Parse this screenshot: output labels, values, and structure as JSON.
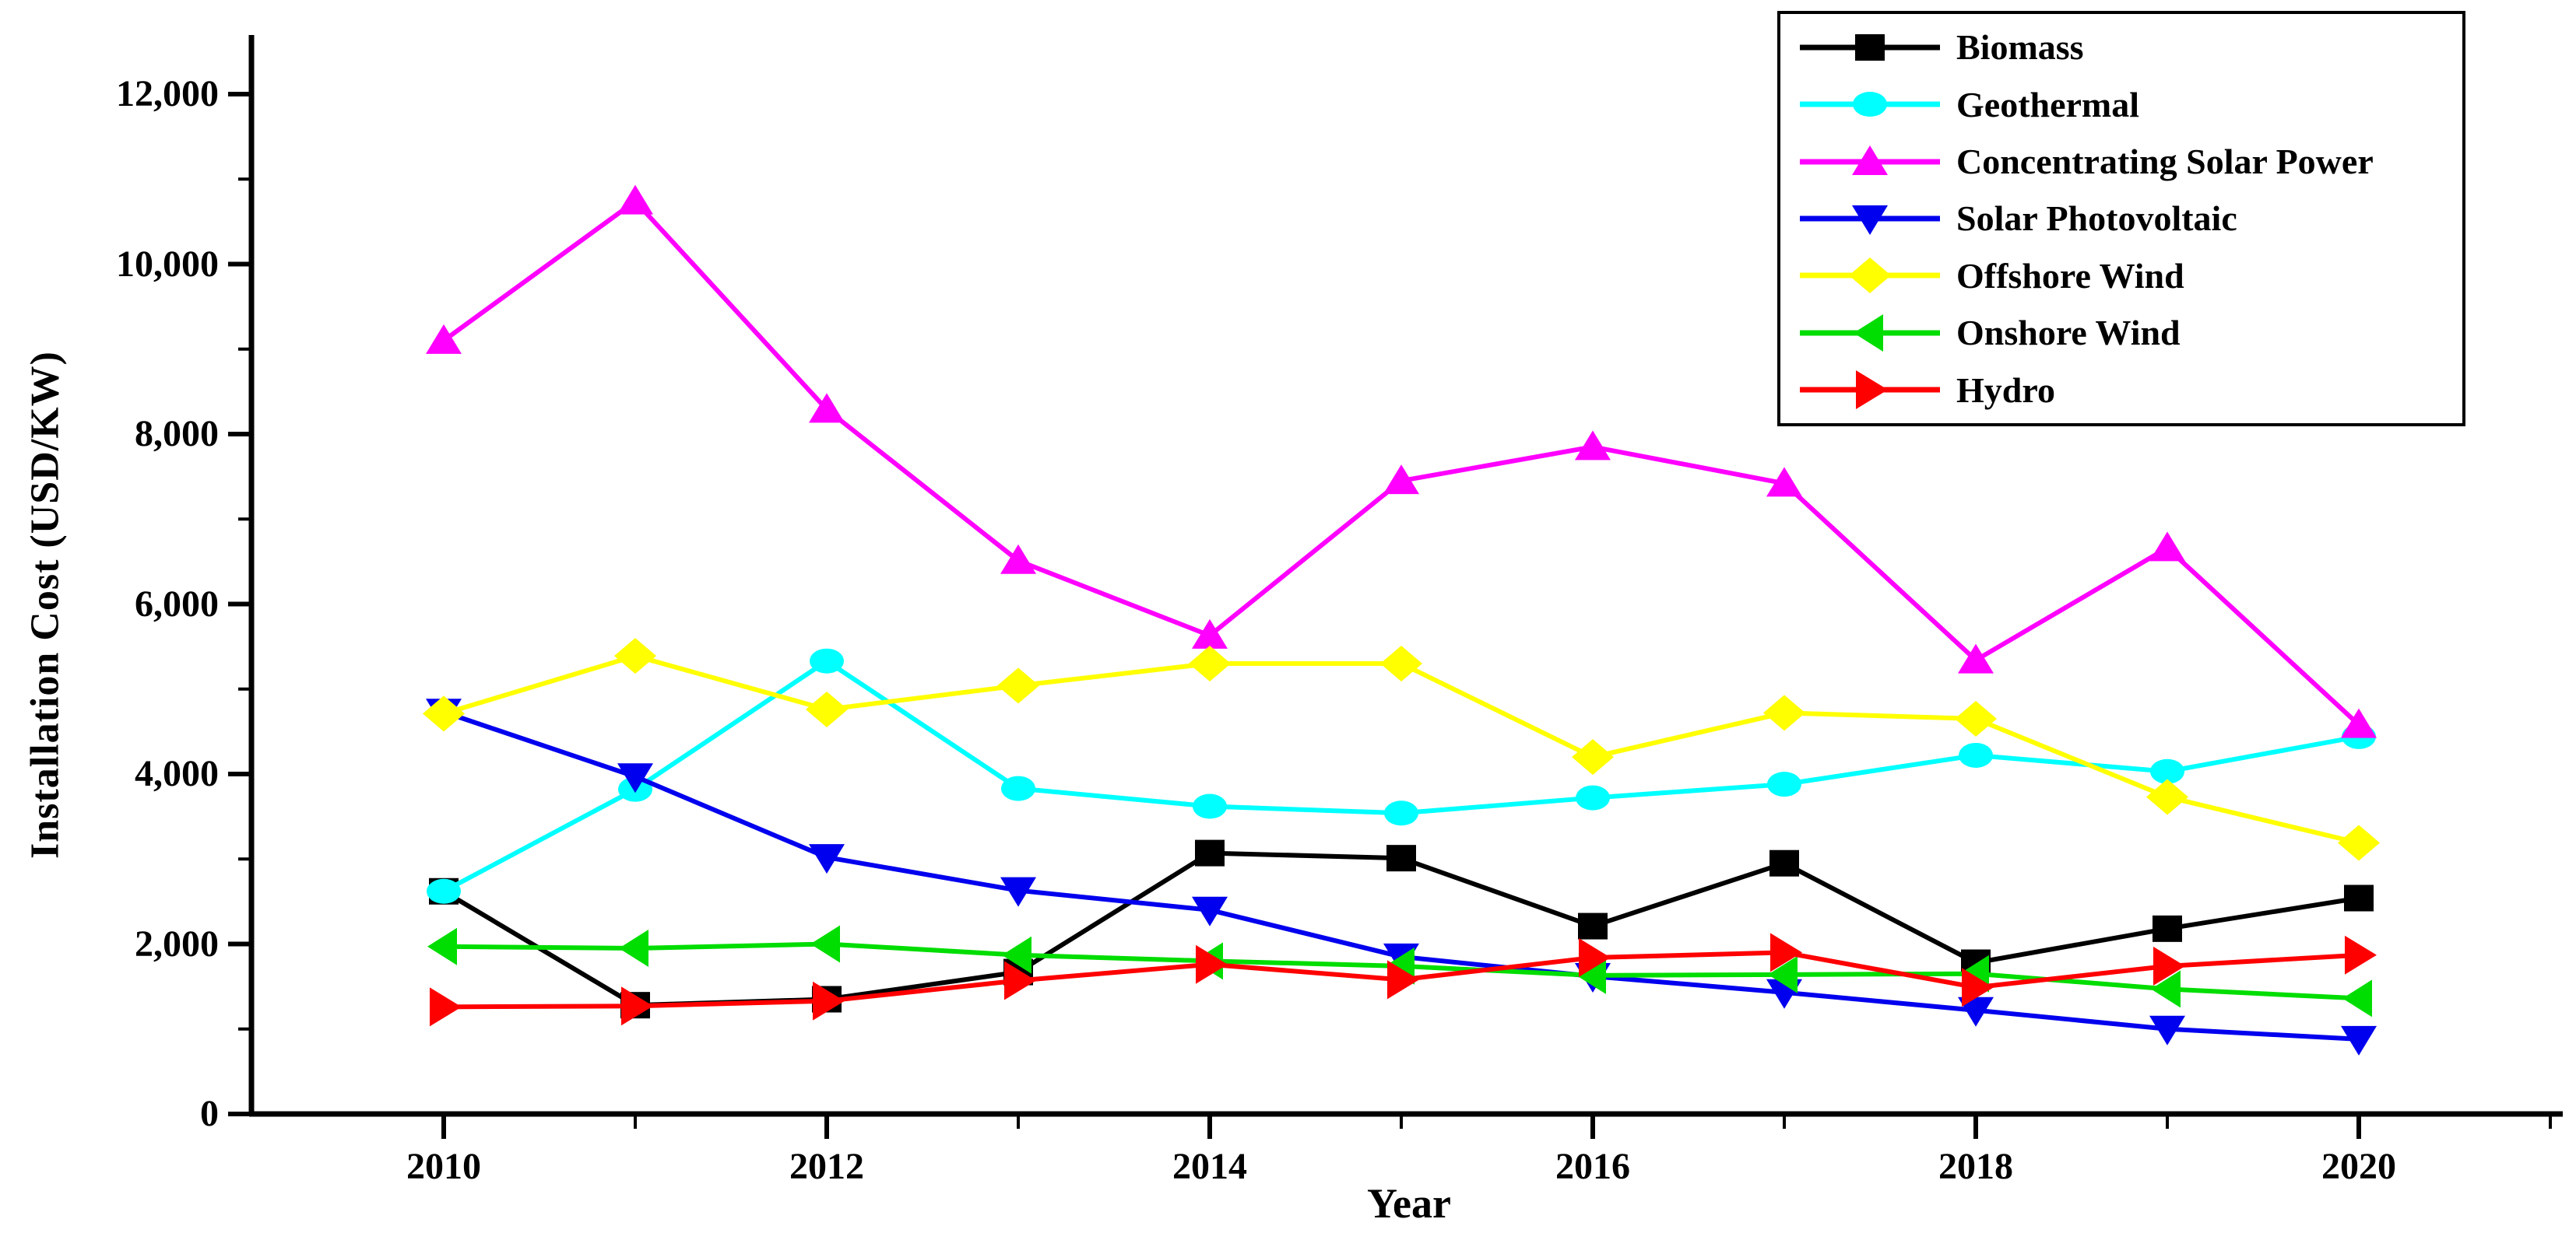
{
  "chart_data": {
    "type": "line",
    "title": "",
    "xlabel": "Year",
    "ylabel": "Installation Cost (USD/KW)",
    "grid": false,
    "legend_position": "top-right",
    "xlim": [
      2009,
      2021.1
    ],
    "ylim": [
      0,
      12700
    ],
    "x": [
      2010,
      2011,
      2012,
      2013,
      2014,
      2015,
      2016,
      2017,
      2018,
      2019,
      2020
    ],
    "x_major_ticks": [
      {
        "year": 2010,
        "label": "2010"
      },
      {
        "year": 2012,
        "label": "2012"
      },
      {
        "year": 2014,
        "label": "2014"
      },
      {
        "year": 2016,
        "label": "2016"
      },
      {
        "year": 2018,
        "label": "2018"
      },
      {
        "year": 2020,
        "label": "2020"
      }
    ],
    "x_minor_tick_years": [
      2011,
      2013,
      2015,
      2017,
      2019,
      2021
    ],
    "y_major_ticks": [
      {
        "value": 0,
        "label": "0"
      },
      {
        "value": 2000,
        "label": "2,000"
      },
      {
        "value": 4000,
        "label": "4,000"
      },
      {
        "value": 6000,
        "label": "6,000"
      },
      {
        "value": 8000,
        "label": "8,000"
      },
      {
        "value": 10000,
        "label": "10,000"
      },
      {
        "value": 12000,
        "label": "12,000"
      }
    ],
    "y_minor_tick_values": [
      1000,
      3000,
      5000,
      7000,
      9000,
      11000
    ],
    "series": [
      {
        "name": "Biomass",
        "color": "#000000",
        "marker": "square",
        "values": [
          2620,
          1280,
          1350,
          1670,
          3070,
          3010,
          2210,
          2950,
          1780,
          2180,
          2540
        ]
      },
      {
        "name": "Geothermal",
        "color": "#00ffff",
        "marker": "circle",
        "values": [
          2620,
          3820,
          5330,
          3830,
          3620,
          3540,
          3720,
          3880,
          4220,
          4030,
          4440
        ]
      },
      {
        "name": "Concentrating Solar Power",
        "color": "#ff00ff",
        "marker": "triangle-up",
        "values": [
          9100,
          10740,
          8290,
          6510,
          5630,
          7450,
          7850,
          7420,
          5340,
          6660,
          4580
        ]
      },
      {
        "name": "Solar Photovoltaic",
        "color": "#0000ee",
        "marker": "triangle-down",
        "values": [
          4730,
          3970,
          3020,
          2630,
          2400,
          1850,
          1620,
          1430,
          1220,
          1000,
          880
        ]
      },
      {
        "name": "Offshore Wind",
        "color": "#ffff00",
        "marker": "diamond",
        "values": [
          4710,
          5390,
          4760,
          5040,
          5300,
          5300,
          4200,
          4720,
          4650,
          3730,
          3190
        ]
      },
      {
        "name": "Onshore Wind",
        "color": "#00dd00",
        "marker": "triangle-left",
        "values": [
          1970,
          1950,
          2000,
          1870,
          1800,
          1740,
          1630,
          1640,
          1650,
          1470,
          1360
        ]
      },
      {
        "name": "Hydro",
        "color": "#ff0000",
        "marker": "triangle-right",
        "values": [
          1260,
          1270,
          1330,
          1570,
          1760,
          1580,
          1840,
          1900,
          1490,
          1740,
          1870
        ]
      }
    ]
  }
}
